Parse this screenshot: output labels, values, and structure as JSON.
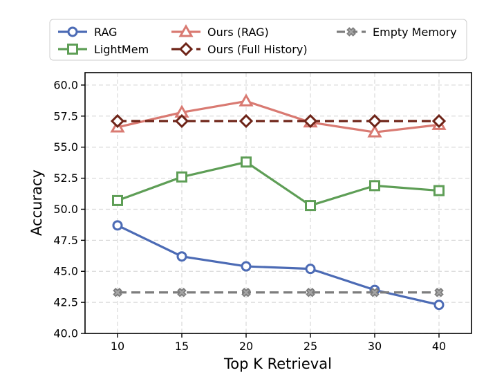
{
  "chart_data": {
    "type": "line",
    "xlabel": "Top K Retrieval",
    "ylabel": "Accuracy",
    "x": [
      10,
      15,
      20,
      25,
      30,
      40
    ],
    "xticks": [
      "10",
      "15",
      "20",
      "25",
      "30",
      "40"
    ],
    "yticks": [
      "40.0",
      "42.5",
      "45.0",
      "47.5",
      "50.0",
      "52.5",
      "55.0",
      "57.5",
      "60.0"
    ],
    "ylim": [
      40.0,
      61.0
    ],
    "grid": true,
    "legend_position": "top",
    "series": [
      {
        "name": "RAG",
        "color": "#4c6bb5",
        "marker": "circle",
        "dashed": false,
        "values": [
          48.7,
          46.2,
          45.4,
          45.2,
          43.5,
          42.3
        ]
      },
      {
        "name": "LightMem",
        "color": "#5e9e56",
        "marker": "square",
        "dashed": false,
        "values": [
          50.7,
          52.6,
          53.8,
          50.3,
          51.9,
          51.5
        ]
      },
      {
        "name": "Ours (RAG)",
        "color": "#d97a72",
        "marker": "triangle",
        "dashed": false,
        "values": [
          56.6,
          57.8,
          58.7,
          57.0,
          56.2,
          56.8
        ]
      },
      {
        "name": "Ours (Full History)",
        "color": "#6e2418",
        "marker": "diamond",
        "dashed": true,
        "values": [
          57.1,
          57.1,
          57.1,
          57.1,
          57.1,
          57.1
        ]
      },
      {
        "name": "Empty Memory",
        "color": "#7d7d7d",
        "marker": "x",
        "dashed": true,
        "values": [
          43.3,
          43.3,
          43.3,
          43.3,
          43.3,
          43.3
        ]
      }
    ]
  }
}
